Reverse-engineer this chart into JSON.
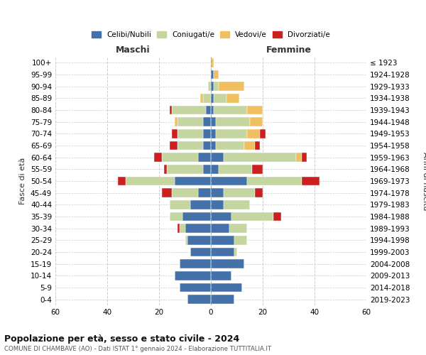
{
  "age_groups_bottom_to_top": [
    "0-4",
    "5-9",
    "10-14",
    "15-19",
    "20-24",
    "25-29",
    "30-34",
    "35-39",
    "40-44",
    "45-49",
    "50-54",
    "55-59",
    "60-64",
    "65-69",
    "70-74",
    "75-79",
    "80-84",
    "85-89",
    "90-94",
    "95-99",
    "100+"
  ],
  "birth_years_bottom_to_top": [
    "2019-2023",
    "2014-2018",
    "2009-2013",
    "2004-2008",
    "1999-2003",
    "1994-1998",
    "1989-1993",
    "1984-1988",
    "1979-1983",
    "1974-1978",
    "1969-1973",
    "1964-1968",
    "1959-1963",
    "1954-1958",
    "1949-1953",
    "1944-1948",
    "1939-1943",
    "1934-1938",
    "1929-1933",
    "1924-1928",
    "≤ 1923"
  ],
  "colors": {
    "celibi": "#4472a8",
    "coniugati": "#c5d5a0",
    "vedovi": "#f0c060",
    "divorziati": "#cc2020"
  },
  "legend_labels": [
    "Celibi/Nubili",
    "Coniugati/e",
    "Vedovi/e",
    "Divorziati/e"
  ],
  "males_bottom_to_top": {
    "celibi": [
      9,
      12,
      14,
      12,
      8,
      9,
      10,
      11,
      8,
      5,
      14,
      3,
      5,
      3,
      3,
      3,
      2,
      0,
      0,
      0,
      0
    ],
    "coniugati": [
      0,
      0,
      0,
      0,
      0,
      1,
      2,
      5,
      8,
      10,
      19,
      14,
      14,
      10,
      10,
      10,
      13,
      3,
      1,
      0,
      0
    ],
    "vedovi": [
      0,
      0,
      0,
      0,
      0,
      0,
      0,
      0,
      0,
      0,
      0,
      0,
      0,
      0,
      0,
      1,
      0,
      1,
      0,
      0,
      0
    ],
    "divorziati": [
      0,
      0,
      0,
      0,
      0,
      0,
      1,
      0,
      0,
      4,
      3,
      1,
      3,
      3,
      2,
      0,
      1,
      0,
      0,
      0,
      0
    ]
  },
  "females_bottom_to_top": {
    "nubili": [
      9,
      12,
      8,
      13,
      9,
      9,
      7,
      8,
      5,
      5,
      14,
      3,
      5,
      2,
      2,
      2,
      1,
      1,
      1,
      1,
      0
    ],
    "coniugati": [
      0,
      0,
      0,
      0,
      1,
      5,
      7,
      16,
      10,
      12,
      21,
      13,
      28,
      11,
      12,
      13,
      13,
      5,
      2,
      0,
      0
    ],
    "vedovi": [
      0,
      0,
      0,
      0,
      0,
      0,
      0,
      0,
      0,
      0,
      0,
      0,
      2,
      4,
      5,
      5,
      6,
      5,
      10,
      2,
      1
    ],
    "divorziati": [
      0,
      0,
      0,
      0,
      0,
      0,
      0,
      3,
      0,
      3,
      7,
      4,
      2,
      2,
      2,
      0,
      0,
      0,
      0,
      0,
      0
    ]
  },
  "xlim": 60,
  "title": "Popolazione per età, sesso e stato civile - 2024",
  "subtitle": "COMUNE DI CHAMBAVE (AO) - Dati ISTAT 1° gennaio 2024 - Elaborazione TUTTITALIA.IT",
  "ylabel_left": "Fasce di età",
  "ylabel_right": "Anni di nascita",
  "xlabel_left": "Maschi",
  "xlabel_right": "Femmine",
  "background_color": "#ffffff",
  "grid_color": "#cccccc"
}
